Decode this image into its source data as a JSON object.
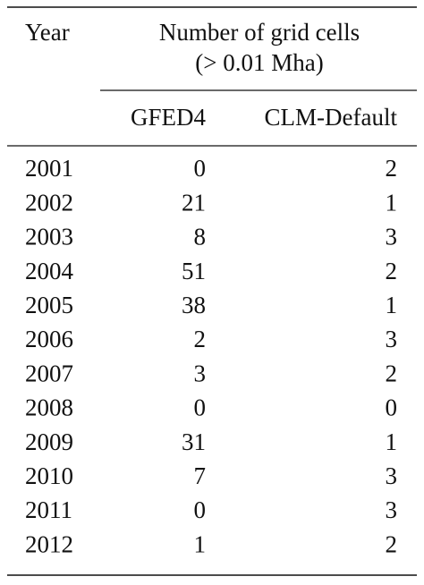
{
  "header": {
    "year": "Year",
    "group": "Number of grid cells",
    "unit": "(> 0.01 Mha)",
    "columns": [
      "GFED4",
      "CLM-Default"
    ]
  },
  "table": {
    "rows": [
      [
        2001,
        0,
        2
      ],
      [
        2002,
        21,
        1
      ],
      [
        2003,
        8,
        3
      ],
      [
        2004,
        51,
        2
      ],
      [
        2005,
        38,
        1
      ],
      [
        2006,
        2,
        3
      ],
      [
        2007,
        3,
        2
      ],
      [
        2008,
        0,
        0
      ],
      [
        2009,
        31,
        1
      ],
      [
        2010,
        7,
        3
      ],
      [
        2011,
        0,
        3
      ],
      [
        2012,
        1,
        2
      ]
    ]
  }
}
